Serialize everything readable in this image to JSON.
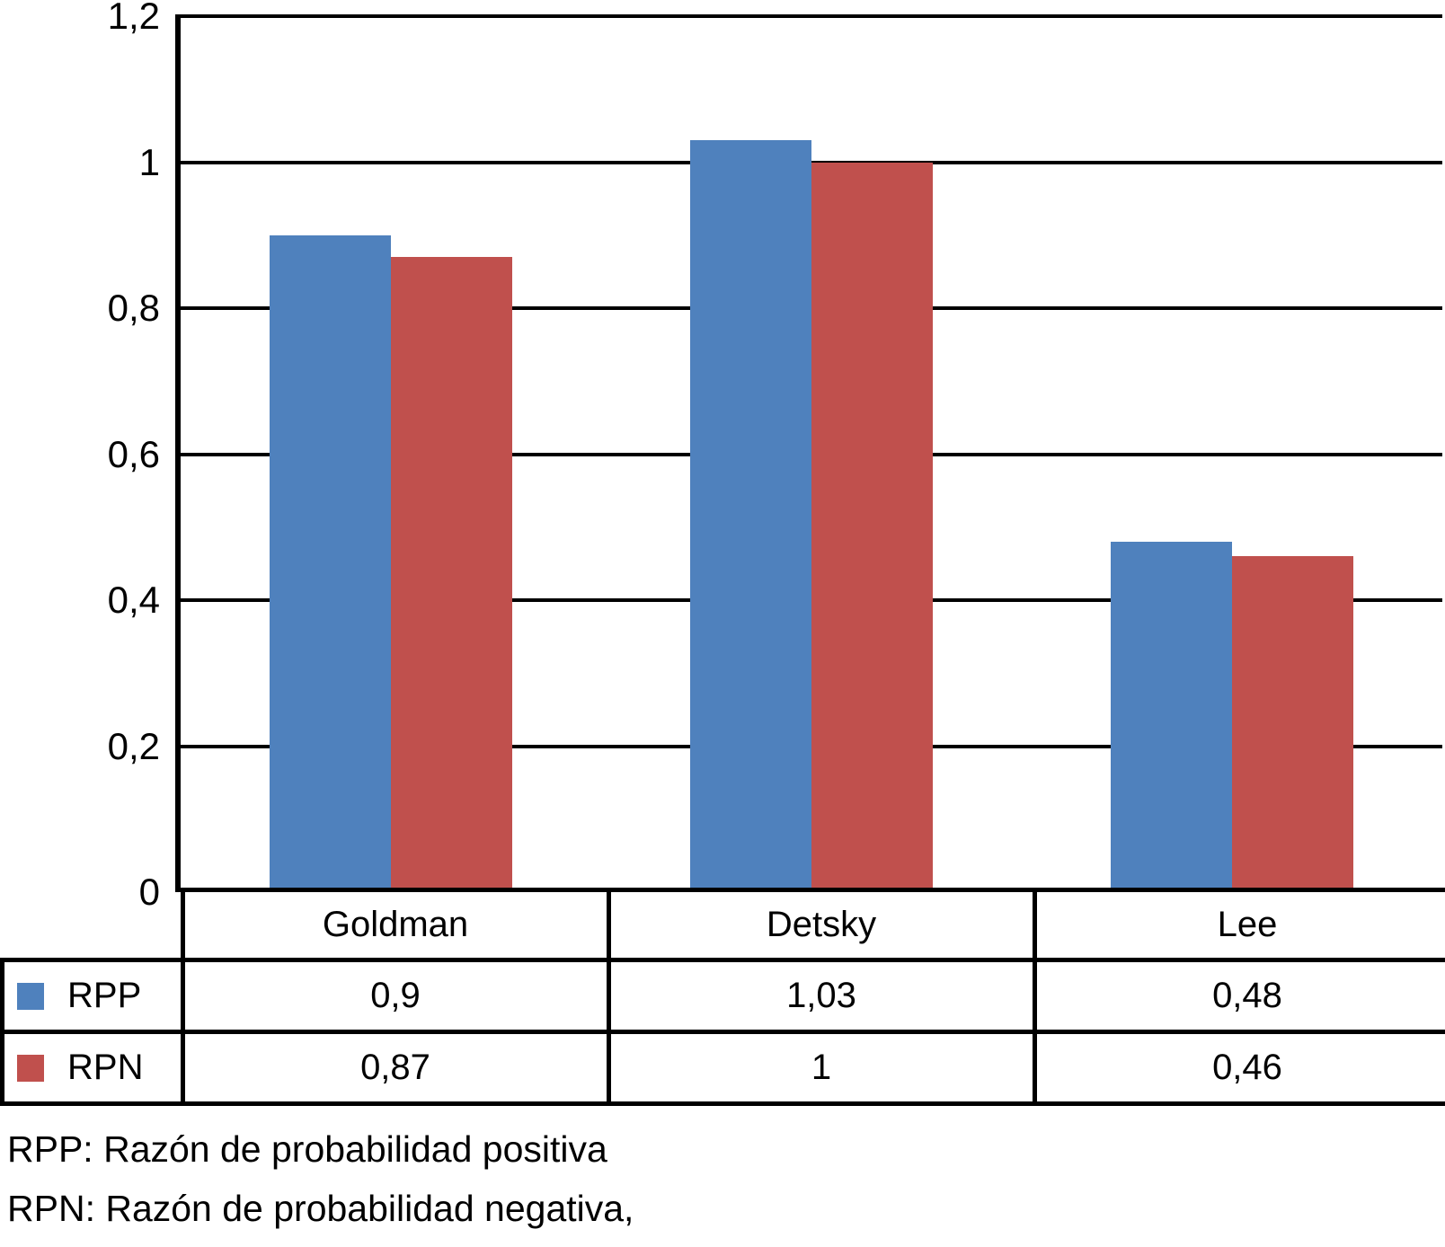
{
  "chart_data": {
    "type": "bar",
    "categories": [
      "Goldman",
      "Detsky",
      "Lee"
    ],
    "series": [
      {
        "name": "RPP",
        "color": "#4F81BD",
        "values": [
          0.9,
          1.03,
          0.48
        ],
        "display": [
          "0,9",
          "1,03",
          "0,48"
        ]
      },
      {
        "name": "RPN",
        "color": "#C0504D",
        "values": [
          0.87,
          1.0,
          0.46
        ],
        "display": [
          "0,87",
          "1",
          "0,46"
        ]
      }
    ],
    "title": "",
    "xlabel": "",
    "ylabel": "",
    "ylim": [
      0,
      1.2
    ],
    "yticks": [
      0,
      0.2,
      0.4,
      0.6,
      0.8,
      1,
      1.2
    ],
    "ytick_labels": [
      "0",
      "0,2",
      "0,4",
      "0,6",
      "0,8",
      "1",
      "1,2"
    ],
    "grid": true,
    "gridline_color": "#000000",
    "legend_position": "table-left-column"
  },
  "footnotes": [
    "RPP: Razón de probabilidad positiva",
    "RPN: Razón de probabilidad negativa,"
  ]
}
